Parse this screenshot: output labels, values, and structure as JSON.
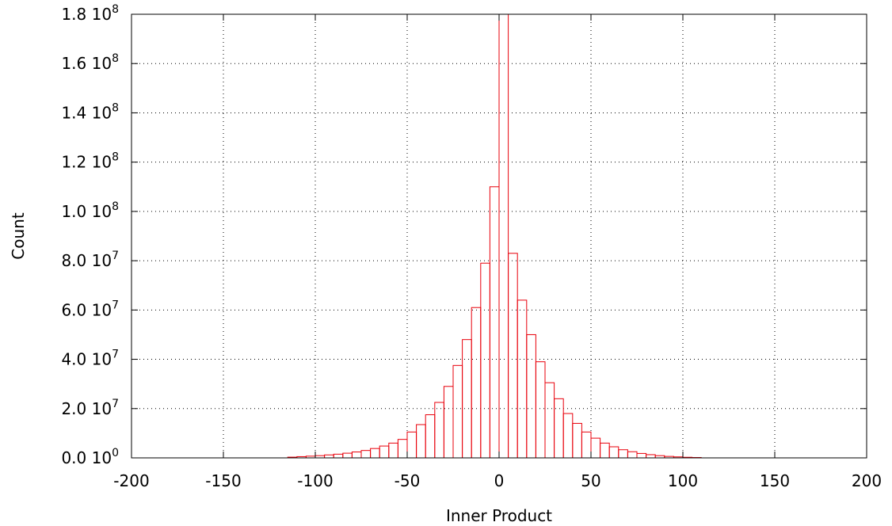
{
  "chart_data": {
    "type": "bar",
    "title": "",
    "xlabel": "Inner Product",
    "ylabel": "Count",
    "xlim": [
      -200,
      200
    ],
    "ylim": [
      0,
      180000000
    ],
    "grid": true,
    "bar_color": "#e8000b",
    "bin_width": 5,
    "x_ticks": [
      {
        "value": -200,
        "label": "-200"
      },
      {
        "value": -150,
        "label": "-150"
      },
      {
        "value": -100,
        "label": "-100"
      },
      {
        "value": -50,
        "label": "-50"
      },
      {
        "value": 0,
        "label": "0"
      },
      {
        "value": 50,
        "label": "50"
      },
      {
        "value": 100,
        "label": "100"
      },
      {
        "value": 150,
        "label": "150"
      },
      {
        "value": 200,
        "label": "200"
      }
    ],
    "y_ticks": [
      {
        "value": 0,
        "mantissa": "0.0 10",
        "exponent": "0"
      },
      {
        "value": 20000000,
        "mantissa": "2.0 10",
        "exponent": "7"
      },
      {
        "value": 40000000,
        "mantissa": "4.0 10",
        "exponent": "7"
      },
      {
        "value": 60000000,
        "mantissa": "6.0 10",
        "exponent": "7"
      },
      {
        "value": 80000000,
        "mantissa": "8.0 10",
        "exponent": "7"
      },
      {
        "value": 100000000,
        "mantissa": "1.0 10",
        "exponent": "8"
      },
      {
        "value": 120000000,
        "mantissa": "1.2 10",
        "exponent": "8"
      },
      {
        "value": 140000000,
        "mantissa": "1.4 10",
        "exponent": "8"
      },
      {
        "value": 160000000,
        "mantissa": "1.6 10",
        "exponent": "8"
      },
      {
        "value": 180000000,
        "mantissa": "1.8 10",
        "exponent": "8"
      }
    ],
    "bins": [
      {
        "x": -110,
        "count": 300000
      },
      {
        "x": -105,
        "count": 500000
      },
      {
        "x": -100,
        "count": 700000
      },
      {
        "x": -95,
        "count": 900000
      },
      {
        "x": -90,
        "count": 1200000
      },
      {
        "x": -85,
        "count": 1500000
      },
      {
        "x": -80,
        "count": 1900000
      },
      {
        "x": -75,
        "count": 2400000
      },
      {
        "x": -70,
        "count": 3000000
      },
      {
        "x": -65,
        "count": 3800000
      },
      {
        "x": -60,
        "count": 4800000
      },
      {
        "x": -55,
        "count": 6000000
      },
      {
        "x": -50,
        "count": 7500000
      },
      {
        "x": -45,
        "count": 10500000
      },
      {
        "x": -40,
        "count": 13500000
      },
      {
        "x": -35,
        "count": 17500000
      },
      {
        "x": -30,
        "count": 22500000
      },
      {
        "x": -25,
        "count": 29000000
      },
      {
        "x": -20,
        "count": 37500000
      },
      {
        "x": -15,
        "count": 48000000
      },
      {
        "x": -10,
        "count": 61000000
      },
      {
        "x": -5,
        "count": 79000000
      },
      {
        "x": 0,
        "count": 110000000
      },
      {
        "x": 5,
        "count": 180000000
      },
      {
        "x": 10,
        "count": 83000000
      },
      {
        "x": 15,
        "count": 64000000
      },
      {
        "x": 20,
        "count": 50000000
      },
      {
        "x": 25,
        "count": 39000000
      },
      {
        "x": 30,
        "count": 30500000
      },
      {
        "x": 35,
        "count": 24000000
      },
      {
        "x": 40,
        "count": 18000000
      },
      {
        "x": 45,
        "count": 14000000
      },
      {
        "x": 50,
        "count": 10500000
      },
      {
        "x": 55,
        "count": 8000000
      },
      {
        "x": 60,
        "count": 6000000
      },
      {
        "x": 65,
        "count": 4500000
      },
      {
        "x": 70,
        "count": 3300000
      },
      {
        "x": 75,
        "count": 2500000
      },
      {
        "x": 80,
        "count": 1800000
      },
      {
        "x": 85,
        "count": 1300000
      },
      {
        "x": 90,
        "count": 900000
      },
      {
        "x": 95,
        "count": 600000
      },
      {
        "x": 100,
        "count": 400000
      },
      {
        "x": 105,
        "count": 250000
      },
      {
        "x": 110,
        "count": 150000
      }
    ]
  }
}
